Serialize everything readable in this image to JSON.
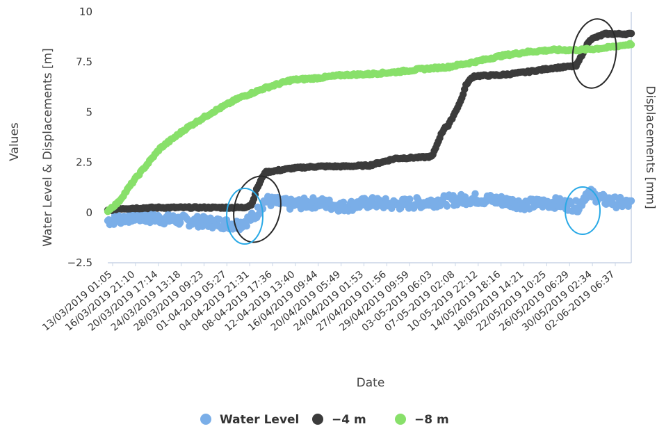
{
  "chart_data": {
    "type": "scatter",
    "title": "",
    "ylabel_outer": "Values",
    "ylabel": "Water Level & Displacements [m]",
    "ylabel_right": "Displacements [mm]",
    "xlabel": "Date",
    "ylim": [
      -2.5,
      10
    ],
    "yticks": [
      -2.5,
      0,
      2.5,
      5,
      7.5,
      10
    ],
    "ytick_labels": [
      "−2.5",
      "0",
      "2.5",
      "5",
      "7.5",
      "10"
    ],
    "x_tick_labels": [
      "13/03/2019 01:05",
      "16/03/2019 21:10",
      "20/03/2019 17:14",
      "24/03/2019 13:18",
      "28/03/2019 09:23",
      "01-04-2019 05:27",
      "04-04-2019 21:31",
      "08-04-2019 17:36",
      "12-04-2019 13:40",
      "16/04/2019 09:44",
      "20/04/2019 05:49",
      "24/04/2019 01:53",
      "27/04/2019 01:56",
      "29/04/2019 09:59",
      "03-05-2019 06:03",
      "07-05-2019 02:08",
      "10-05-2019 22:12",
      "14/05/2019 18:16",
      "18/05/2019 14:21",
      "22/05/2019 10:25",
      "26/05/2019 06:29",
      "30/05/2019 02:34",
      "02-06-2019 06:37"
    ],
    "x_range": [
      0,
      100
    ],
    "legend_position": "bottom",
    "series": [
      {
        "name": "Water Level",
        "color": "#7aaee8",
        "x": [
          0,
          5,
          10,
          15,
          20,
          25,
          28,
          30,
          35,
          40,
          45,
          50,
          55,
          60,
          65,
          70,
          75,
          80,
          85,
          90,
          91.5,
          95,
          100
        ],
        "y": [
          -0.4,
          -0.2,
          -0.3,
          -0.4,
          -0.5,
          -0.6,
          -0.2,
          0.6,
          0.4,
          0.5,
          0.3,
          0.5,
          0.4,
          0.5,
          0.6,
          0.7,
          0.6,
          0.4,
          0.5,
          0.3,
          1.0,
          0.6,
          0.4
        ]
      },
      {
        "name": "−4 m",
        "color": "#3b3b3b",
        "x": [
          0,
          2,
          10,
          20,
          26,
          27.5,
          28.5,
          30,
          35,
          40,
          45,
          50,
          55,
          60,
          62,
          63.5,
          64.5,
          65,
          67.5,
          68.5,
          69.5,
          70,
          75,
          80,
          85,
          89.5,
          92,
          95,
          100
        ],
        "y": [
          0.1,
          0.2,
          0.25,
          0.25,
          0.25,
          0.4,
          1.2,
          2.0,
          2.2,
          2.3,
          2.3,
          2.35,
          2.7,
          2.75,
          2.8,
          3.8,
          4.3,
          4.3,
          5.6,
          6.4,
          6.7,
          6.8,
          6.85,
          7.0,
          7.2,
          7.3,
          8.6,
          8.9,
          8.9
        ]
      },
      {
        "name": "−8 m",
        "color": "#88e06a",
        "x": [
          0,
          2,
          5,
          10,
          15,
          20,
          25,
          30,
          35,
          40,
          45,
          50,
          55,
          60,
          65,
          70,
          75,
          80,
          85,
          90,
          95,
          100
        ],
        "y": [
          0.1,
          0.5,
          1.6,
          3.2,
          4.2,
          5.0,
          5.7,
          6.2,
          6.6,
          6.7,
          6.85,
          6.9,
          7.0,
          7.15,
          7.25,
          7.5,
          7.8,
          8.0,
          8.1,
          8.1,
          8.2,
          8.4
        ]
      }
    ],
    "annotations": [
      {
        "shape": "ellipse",
        "color": "#2a2a2a",
        "around": "step near 06-04-2019"
      },
      {
        "shape": "ellipse",
        "color": "#29a9e6",
        "around": "water level rise near 06-04-2019"
      },
      {
        "shape": "ellipse",
        "color": "#2a2a2a",
        "around": "step near 31/05/2019"
      },
      {
        "shape": "ellipse",
        "color": "#29a9e6",
        "around": "water level rise near 31/05/2019"
      }
    ]
  }
}
